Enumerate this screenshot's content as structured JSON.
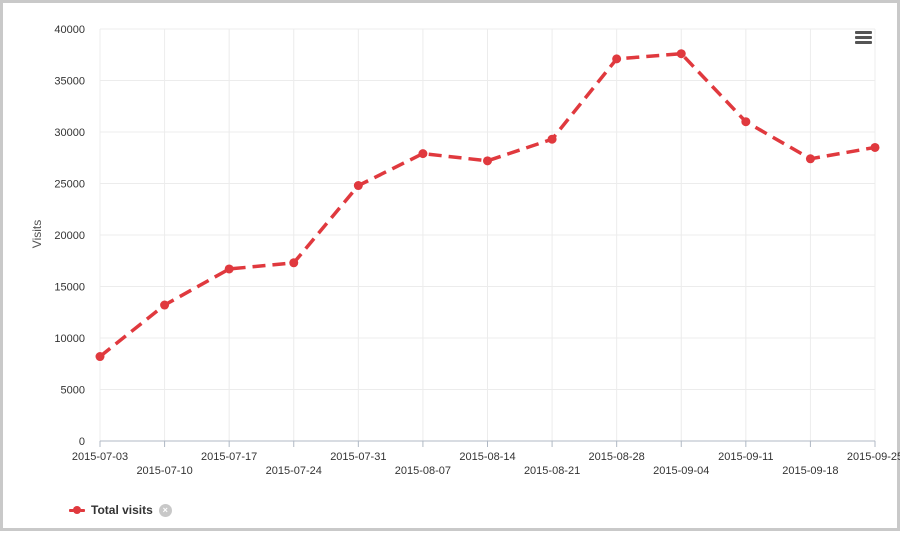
{
  "chart_data": {
    "type": "line",
    "ylabel": "Visits",
    "ylim": [
      0,
      40000
    ],
    "y_ticks": [
      0,
      5000,
      10000,
      15000,
      20000,
      25000,
      30000,
      35000,
      40000
    ],
    "categories": [
      "2015-07-03",
      "2015-07-10",
      "2015-07-17",
      "2015-07-24",
      "2015-07-31",
      "2015-08-07",
      "2015-08-14",
      "2015-08-21",
      "2015-08-28",
      "2015-09-04",
      "2015-09-11",
      "2015-09-18",
      "2015-09-25"
    ],
    "series": [
      {
        "name": "Total visits",
        "color": "#e0393e",
        "line_style": "dashed",
        "values": [
          8200,
          13200,
          16700,
          17300,
          24800,
          27900,
          27200,
          29300,
          37100,
          37600,
          31000,
          27400,
          28500
        ]
      }
    ],
    "grid": "vertical and horizontal",
    "legend_position": "bottom-left"
  },
  "legend": {
    "label": "Total visits",
    "remove_icon": "×"
  },
  "menu": {
    "icon": "hamburger-menu-icon"
  }
}
